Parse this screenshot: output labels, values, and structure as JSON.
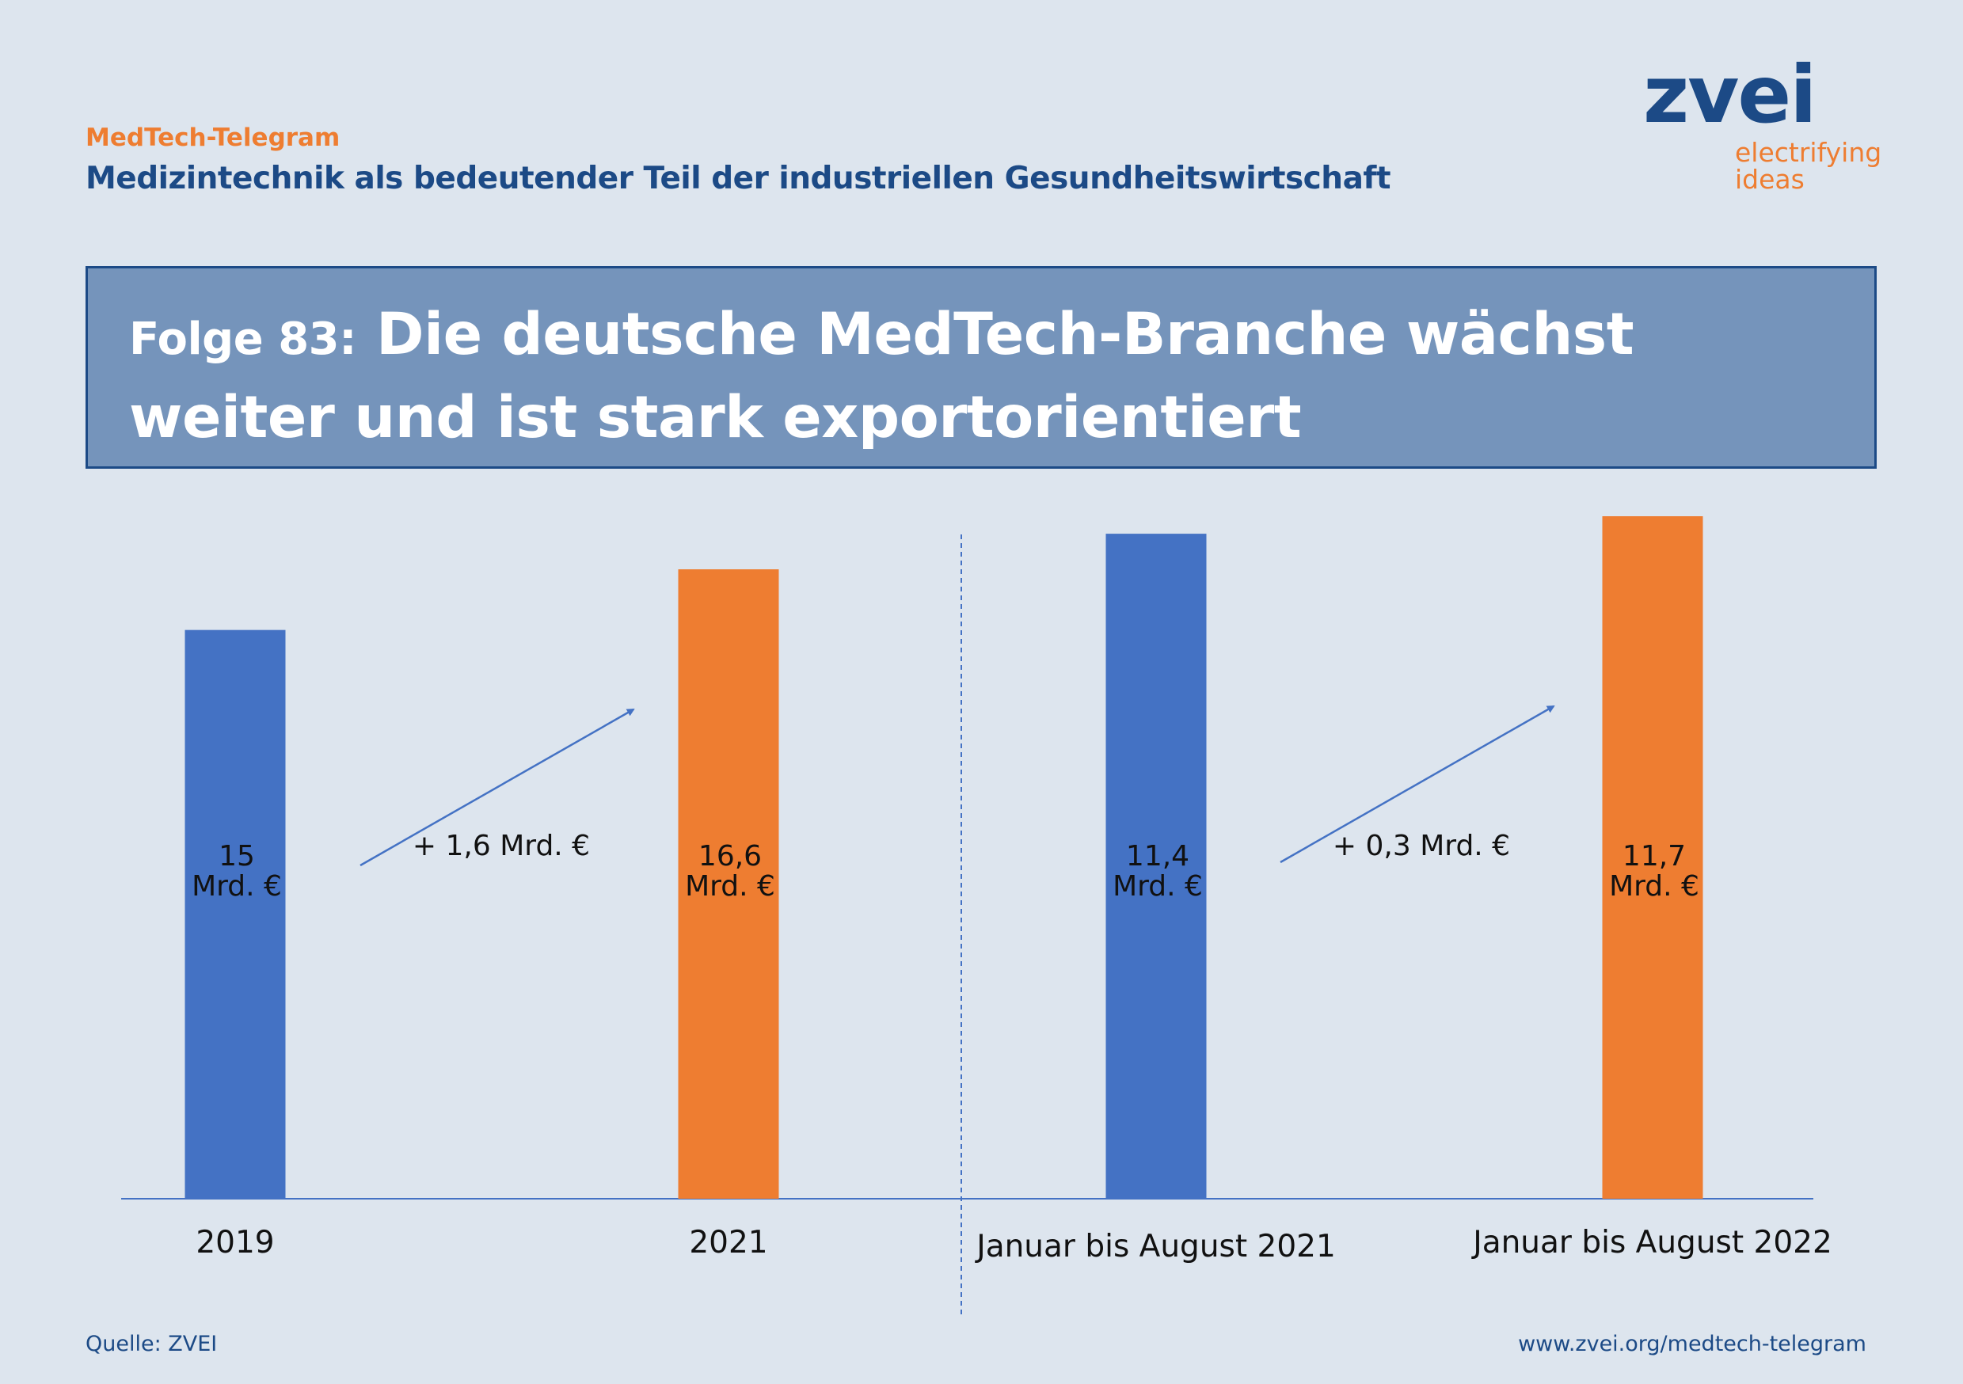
{
  "header": {
    "kicker": "MedTech-Telegram",
    "subtitle": "Medizintechnik als bedeutender Teil der industriellen Gesundheitswirtschaft"
  },
  "logo": {
    "word": "zvei",
    "tagline_1": "electrifying",
    "tagline_2": "ideas"
  },
  "title": {
    "prefix": "Folge 83:",
    "main": "Die deutsche MedTech-Branche wächst weiter und ist stark exportorientiert"
  },
  "colors": {
    "background": "#dde5ee",
    "blue_bar": "#4472c4",
    "orange_bar": "#ee7d31",
    "navy": "#1c4a86",
    "title_box": "#7594bb"
  },
  "chart_data": {
    "type": "bar",
    "categories": [
      "2019",
      "2021",
      "Januar bis August 2021",
      "Januar bis August 2022"
    ],
    "values": [
      15,
      16.6,
      11.4,
      11.7
    ],
    "value_labels": [
      [
        "15",
        "Mrd. €"
      ],
      [
        "16,6",
        "Mrd. €"
      ],
      [
        "11,4",
        "Mrd. €"
      ],
      [
        "11,7",
        "Mrd. €"
      ]
    ],
    "groups": [
      {
        "categories": [
          "2019",
          "2021"
        ],
        "value_max": 18.0,
        "change_label": "+ 1,6 Mrd. €"
      },
      {
        "categories": [
          "Januar bis August 2021",
          "Januar bis August 2022"
        ],
        "value_max": 11.7,
        "change_label": "+ 0,3 Mrd. €"
      }
    ],
    "bar_colors": [
      "#4472c4",
      "#ee7d31",
      "#4472c4",
      "#ee7d31"
    ],
    "title": "",
    "xlabel": "",
    "ylabel": "",
    "grid": false,
    "legend": "none"
  },
  "footer": {
    "source": "Quelle: ZVEI",
    "url": "www.zvei.org/medtech-telegram"
  }
}
